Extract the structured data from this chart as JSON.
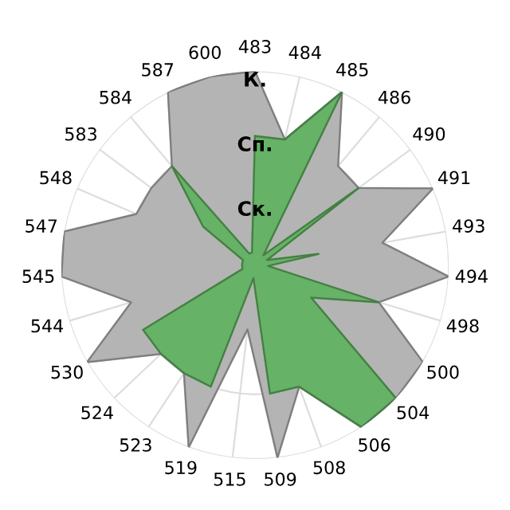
{
  "chart_data": {
    "type": "radar",
    "categories": [
      "483",
      "484",
      "485",
      "486",
      "490",
      "491",
      "493",
      "494",
      "498",
      "500",
      "504",
      "506",
      "508",
      "509",
      "515",
      "519",
      "523",
      "524",
      "530",
      "544",
      "545",
      "547",
      "548",
      "583",
      "584",
      "587",
      "600"
    ],
    "series": [
      {
        "color": "#b4b4b4",
        "values": [
          3,
          2,
          3,
          2,
          2,
          3,
          2,
          3,
          2,
          3,
          3,
          3,
          2,
          3,
          1,
          3,
          2,
          2,
          3,
          2,
          3,
          3,
          2,
          2,
          2,
          3,
          3
        ]
      },
      {
        "color": "#66b266",
        "values": [
          2,
          2,
          3,
          0.2,
          2,
          0.2,
          1,
          0.2,
          2,
          1,
          3,
          3,
          2,
          2,
          0.2,
          2,
          2,
          2,
          2,
          0.2,
          0.2,
          0.2,
          0.2,
          1,
          2,
          0.2,
          0.2
        ]
      }
    ],
    "ylim": [
      0,
      3
    ],
    "yticks": [
      {
        "value": 1,
        "label": "Ск."
      },
      {
        "value": 2,
        "label": "Сп."
      },
      {
        "value": 3,
        "label": "К."
      }
    ],
    "grid": true
  }
}
